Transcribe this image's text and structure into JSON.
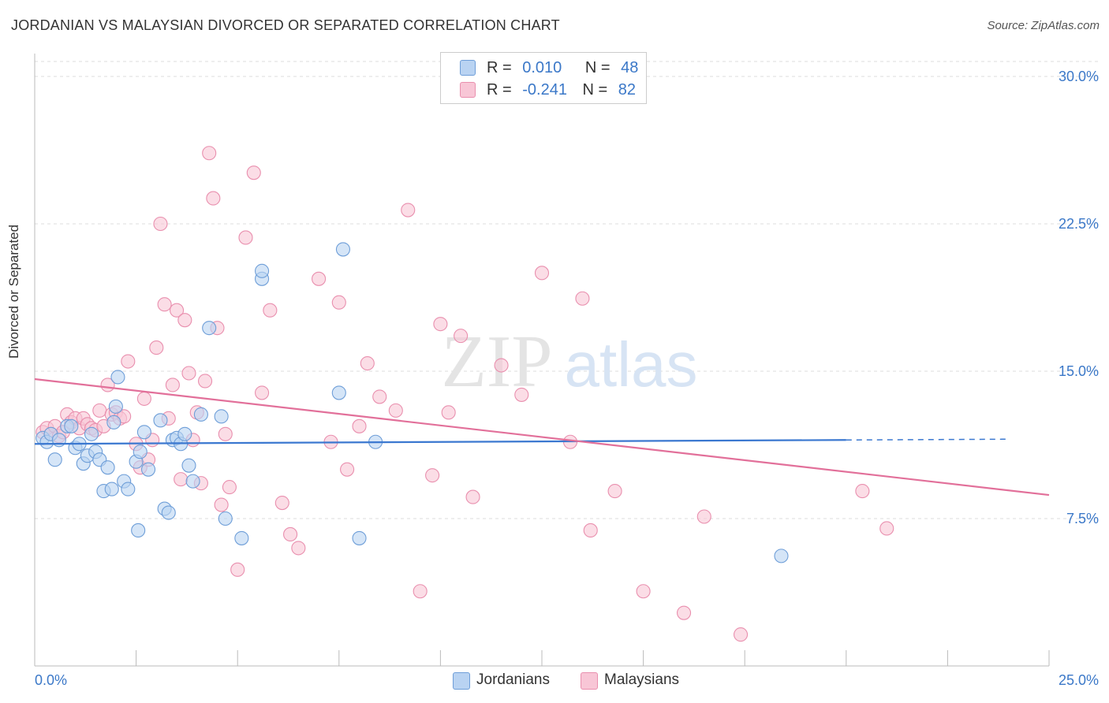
{
  "title": "JORDANIAN VS MALAYSIAN DIVORCED OR SEPARATED CORRELATION CHART",
  "source": "Source: ZipAtlas.com",
  "colors": {
    "jordanians_fill": "#b9d3f2",
    "jordanians_stroke": "#6e9ed8",
    "jordanians_line": "#3b78d0",
    "malaysians_fill": "#f8c6d6",
    "malaysians_stroke": "#e98fae",
    "malaysians_line": "#e2709a",
    "value_text": "#3b78c8",
    "grid": "#dddddd"
  },
  "legend_top": {
    "rows": [
      {
        "r_label": "R =",
        "r_value": "0.010",
        "n_label": "N =",
        "n_value": "48"
      },
      {
        "r_label": "R =",
        "r_value": "-0.241",
        "n_label": "N =",
        "n_value": "82"
      }
    ]
  },
  "legend_bottom": {
    "items": [
      "Jordanians",
      "Malaysians"
    ]
  },
  "watermark": {
    "zip": "ZIP",
    "atlas": "atlas"
  },
  "chart_data": {
    "type": "scatter",
    "xlabel": "",
    "ylabel": "Divorced or Separated",
    "xlim": [
      0,
      25
    ],
    "ylim": [
      0,
      30
    ],
    "x_tick_labels": [
      "0.0%",
      "25.0%"
    ],
    "y_ticks": [
      7.5,
      15.0,
      22.5,
      30.0
    ],
    "y_tick_labels": [
      "7.5%",
      "15.0%",
      "22.5%",
      "30.0%"
    ],
    "grid": "horizontal dashed",
    "legend": "top-center",
    "series": [
      {
        "name": "Jordanians",
        "r": 0.01,
        "n": 48,
        "trend": {
          "x": [
            0,
            20
          ],
          "y": [
            11.3,
            11.5
          ],
          "dashed_extension_to": 24
        },
        "x": [
          0.2,
          0.3,
          0.4,
          0.5,
          0.6,
          0.8,
          0.9,
          1.0,
          1.1,
          1.2,
          1.3,
          1.4,
          1.5,
          1.6,
          1.7,
          1.8,
          1.9,
          1.95,
          2.0,
          2.05,
          2.2,
          2.3,
          2.5,
          2.55,
          2.6,
          2.7,
          2.8,
          3.1,
          3.2,
          3.3,
          3.4,
          3.5,
          3.6,
          3.7,
          3.8,
          3.9,
          4.1,
          4.3,
          4.6,
          4.7,
          5.1,
          5.6,
          5.6,
          7.5,
          7.6,
          8.0,
          8.4,
          18.4
        ],
        "y": [
          11.6,
          11.4,
          11.8,
          10.5,
          11.5,
          12.2,
          12.2,
          11.1,
          11.3,
          10.3,
          10.7,
          11.8,
          10.9,
          10.5,
          8.9,
          10.1,
          9.0,
          12.4,
          13.2,
          14.7,
          9.4,
          9.0,
          10.4,
          6.9,
          10.9,
          11.9,
          10.0,
          12.5,
          8.0,
          7.8,
          11.5,
          11.6,
          11.3,
          11.8,
          10.2,
          9.4,
          12.8,
          17.2,
          12.7,
          7.5,
          6.5,
          19.7,
          20.1,
          13.9,
          21.2,
          6.5,
          11.4,
          5.6
        ],
        "note": "values estimated from the plotted marks"
      },
      {
        "name": "Malaysians",
        "r": -0.241,
        "n": 82,
        "trend": {
          "x": [
            0,
            25
          ],
          "y": [
            14.6,
            8.7
          ]
        },
        "x": [
          0.2,
          0.3,
          0.4,
          0.5,
          0.6,
          0.7,
          0.8,
          0.9,
          1.0,
          1.1,
          1.2,
          1.3,
          1.4,
          1.5,
          1.6,
          1.7,
          1.8,
          1.9,
          2.0,
          2.1,
          2.2,
          2.3,
          2.5,
          2.6,
          2.7,
          2.8,
          2.9,
          3.0,
          3.1,
          3.2,
          3.3,
          3.4,
          3.5,
          3.6,
          3.7,
          3.8,
          3.9,
          4.0,
          4.1,
          4.2,
          4.3,
          4.4,
          4.5,
          4.6,
          4.7,
          4.8,
          5.0,
          5.2,
          5.4,
          5.6,
          5.8,
          6.1,
          6.3,
          6.5,
          7.0,
          7.3,
          7.5,
          7.7,
          8.0,
          8.2,
          8.5,
          8.9,
          9.2,
          9.5,
          9.8,
          10.0,
          10.2,
          10.5,
          10.8,
          11.5,
          12.0,
          12.5,
          13.2,
          13.5,
          13.7,
          14.3,
          15.0,
          16.0,
          16.5,
          17.4,
          20.4,
          21.0
        ],
        "y": [
          11.9,
          12.1,
          11.8,
          12.2,
          11.7,
          11.9,
          12.8,
          12.4,
          12.6,
          12.1,
          12.6,
          12.3,
          12.1,
          12.0,
          13.0,
          12.2,
          14.3,
          12.8,
          12.9,
          12.6,
          12.7,
          15.5,
          11.3,
          10.1,
          13.6,
          10.5,
          11.5,
          16.2,
          22.5,
          18.4,
          12.6,
          14.3,
          18.1,
          9.5,
          17.6,
          14.9,
          11.5,
          12.9,
          9.3,
          14.5,
          26.1,
          23.8,
          17.2,
          8.2,
          11.8,
          9.1,
          4.9,
          21.8,
          25.1,
          13.9,
          18.1,
          8.3,
          6.7,
          6.0,
          19.7,
          11.4,
          18.5,
          10.0,
          12.2,
          15.4,
          13.7,
          13.0,
          23.2,
          3.8,
          9.7,
          17.4,
          12.9,
          16.8,
          8.6,
          15.3,
          13.8,
          20.0,
          11.4,
          18.7,
          6.9,
          8.9,
          3.8,
          2.7,
          7.6,
          1.6,
          8.9,
          7.0
        ],
        "note": "values estimated from the plotted marks"
      }
    ]
  }
}
